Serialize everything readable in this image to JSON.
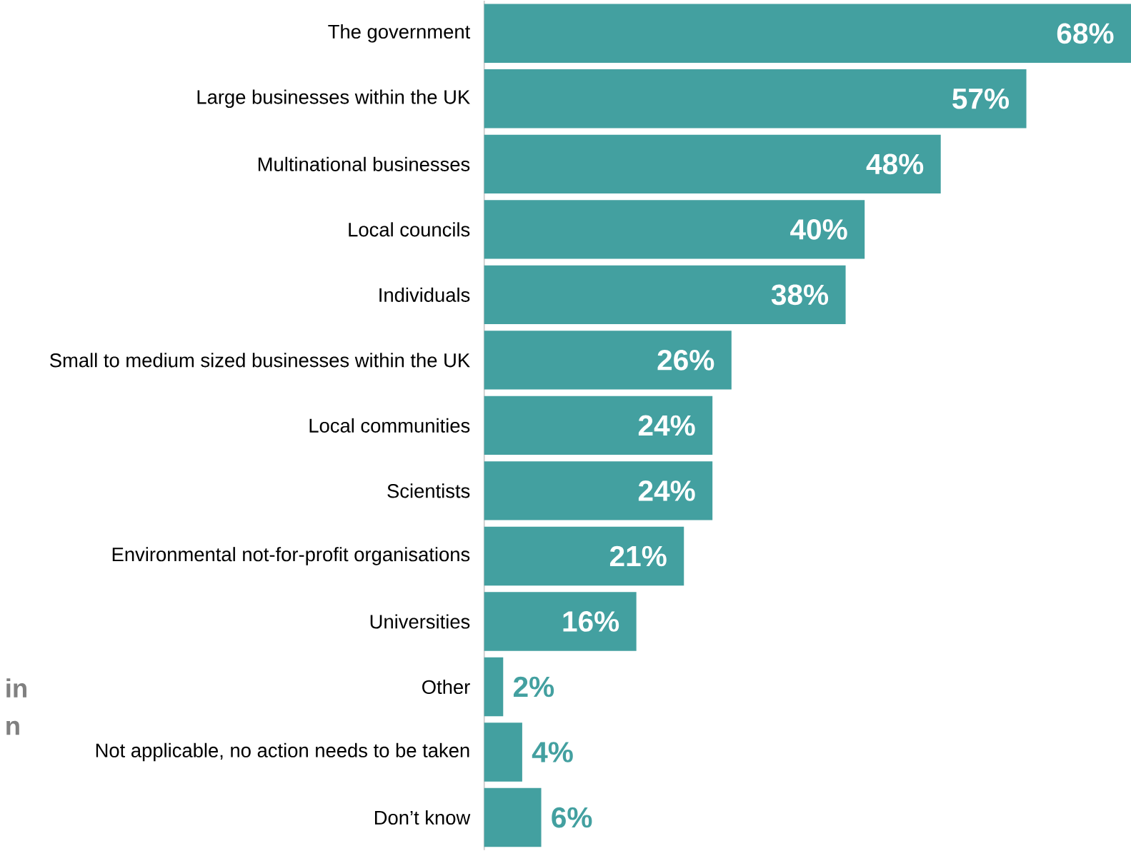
{
  "chart_data": {
    "type": "bar",
    "orientation": "horizontal",
    "categories": [
      "The government",
      "Large businesses within the UK",
      "Multinational businesses",
      "Local councils",
      "Individuals",
      "Small to medium sized businesses within the UK",
      "Local communities",
      "Scientists",
      "Environmental not-for-profit organisations",
      "Universities",
      "Other",
      "Not applicable, no action needs to be taken",
      "Don’t know"
    ],
    "values": [
      68,
      57,
      48,
      40,
      38,
      26,
      24,
      24,
      21,
      16,
      2,
      4,
      6
    ],
    "value_labels": [
      "68%",
      "57%",
      "48%",
      "40%",
      "38%",
      "26%",
      "24%",
      "24%",
      "21%",
      "16%",
      "2%",
      "4%",
      "6%"
    ],
    "color": "#43a0a0",
    "annotations": [
      "in",
      "n"
    ]
  }
}
